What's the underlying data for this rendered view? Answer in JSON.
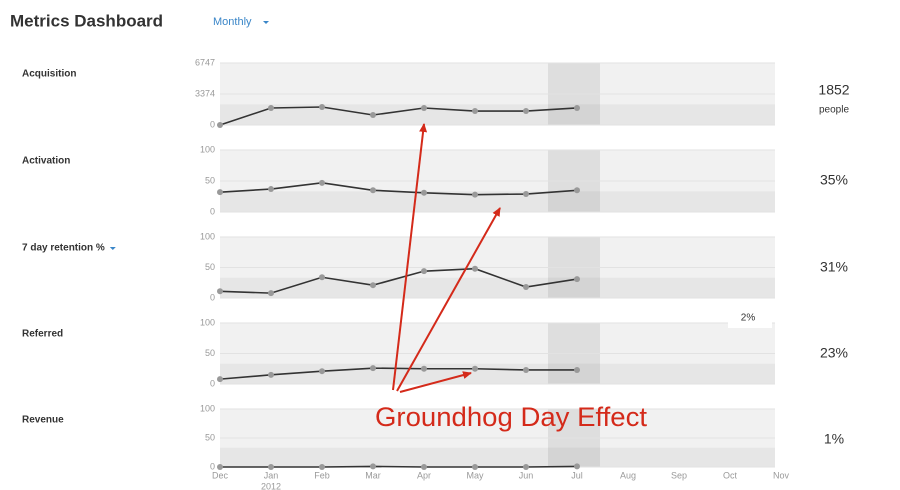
{
  "header": {
    "title": "Metrics Dashboard",
    "period": "Monthly"
  },
  "annotation": "Groundhog Day Effect",
  "tooltip": "2%",
  "chart_data": [
    {
      "type": "line",
      "title": "Acquisition",
      "summary": "1852",
      "summary_unit": "people",
      "values": [
        0,
        1850,
        1960,
        1090,
        1850,
        1520,
        1520,
        1852,
        null,
        null,
        null,
        null
      ],
      "ylim": [
        0,
        6747
      ],
      "yticks": [
        0,
        3374,
        6747
      ],
      "color": "#333333"
    },
    {
      "type": "line",
      "title": "Activation",
      "summary": "35%",
      "values": [
        32,
        37,
        47,
        35,
        31,
        28,
        29,
        35,
        null,
        null,
        null,
        null
      ],
      "ylim": [
        0,
        100
      ],
      "yticks": [
        0,
        50,
        100
      ],
      "color": "#333333"
    },
    {
      "type": "line",
      "title": "7 day retention %",
      "summary": "31%",
      "values": [
        11,
        8,
        34,
        21,
        44,
        48,
        18,
        31,
        null,
        null,
        null,
        null
      ],
      "ylim": [
        0,
        100
      ],
      "yticks": [
        0,
        50,
        100
      ],
      "color": "#333333"
    },
    {
      "type": "line",
      "title": "Referred",
      "summary": "23%",
      "values": [
        8,
        15,
        21,
        26,
        25,
        25,
        23,
        23,
        null,
        null,
        null,
        null
      ],
      "ylim": [
        0,
        100
      ],
      "yticks": [
        0,
        50,
        100
      ],
      "color": "#333333"
    },
    {
      "type": "line",
      "title": "Revenue",
      "summary": "1%",
      "categories": [
        "Dec",
        "Jan",
        "Feb",
        "Mar",
        "Apr",
        "May",
        "Jun",
        "Jul",
        "Aug",
        "Sep",
        "Oct",
        "Nov"
      ],
      "year_label": "2012",
      "values": [
        0,
        0,
        0,
        1,
        0,
        0,
        0,
        1,
        null,
        null,
        null,
        null
      ],
      "ylim": [
        0,
        100
      ],
      "yticks": [
        0,
        50,
        100
      ],
      "color": "#333333"
    }
  ]
}
